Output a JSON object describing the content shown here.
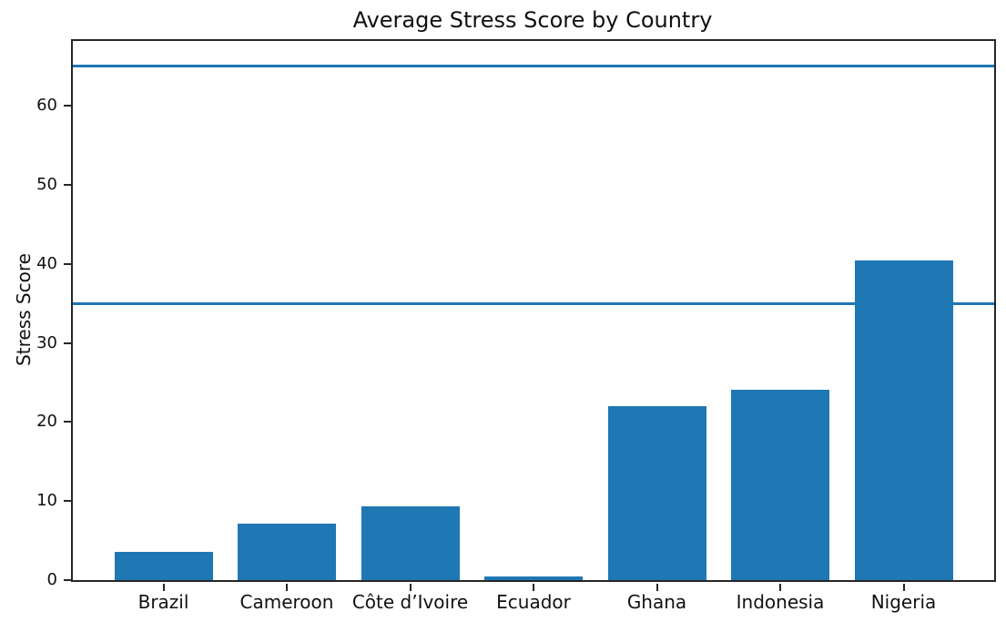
{
  "chart_data": {
    "type": "bar",
    "title": "Average Stress Score by Country",
    "xlabel": "",
    "ylabel": "Stress Score",
    "categories": [
      "Brazil",
      "Cameroon",
      "Côte d’Ivoire",
      "Ecuador",
      "Ghana",
      "Indonesia",
      "Nigeria"
    ],
    "values": [
      3.6,
      7.1,
      9.3,
      0.5,
      22.0,
      24.1,
      40.4
    ],
    "hlines": [
      35,
      65
    ],
    "yticks": [
      0,
      10,
      20,
      30,
      40,
      50,
      60
    ],
    "ylim": [
      0,
      68.2
    ],
    "bar_color": "#1f77b4",
    "hline_color": "#1f77b4",
    "axis_color": "#262626",
    "grid": false,
    "legend_position": "none"
  }
}
